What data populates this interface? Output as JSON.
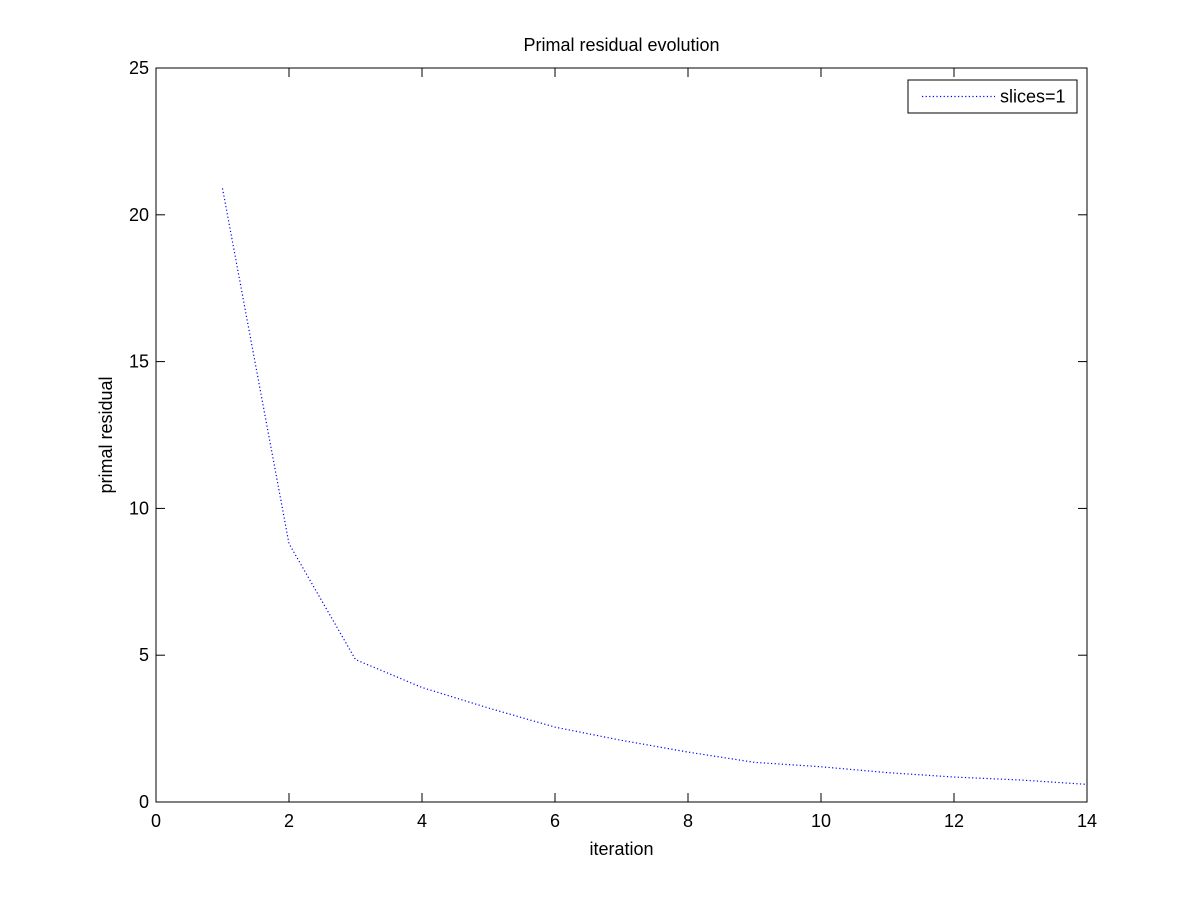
{
  "chart_data": {
    "type": "line",
    "title": "Primal residual evolution",
    "xlabel": "iteration",
    "ylabel": "primal residual",
    "xlim": [
      0,
      14
    ],
    "ylim": [
      0,
      25
    ],
    "xticks": [
      0,
      2,
      4,
      6,
      8,
      10,
      12,
      14
    ],
    "yticks": [
      0,
      5,
      10,
      15,
      20,
      25
    ],
    "grid": false,
    "legend_position": "top-right",
    "series": [
      {
        "name": "slices=1",
        "color": "#0000ff",
        "line_style": "dotted",
        "x": [
          1,
          2,
          3,
          4,
          5,
          6,
          7,
          8,
          9,
          10,
          11,
          12,
          13,
          14
        ],
        "y": [
          20.9,
          8.8,
          4.85,
          3.9,
          3.2,
          2.55,
          2.1,
          1.7,
          1.35,
          1.2,
          1.0,
          0.85,
          0.75,
          0.6
        ]
      }
    ]
  }
}
